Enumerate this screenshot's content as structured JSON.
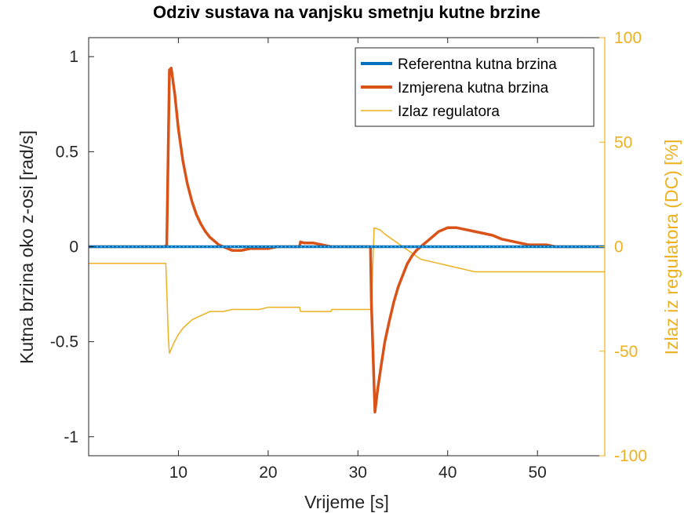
{
  "chart_data": {
    "type": "line",
    "title": "Odziv sustava na vanjsku smetnju kutne brzine",
    "xlabel": "Vrijeme [s]",
    "ylabel": "Kutna brzina oko z-osi [rad/s]",
    "ylabel_right": "Izlaz iz regulatora (DC) [%]",
    "xlim": [
      0,
      57.5
    ],
    "ylim": [
      -1.1,
      1.1
    ],
    "ylim_right": [
      -100,
      100
    ],
    "xticks": [
      10,
      20,
      30,
      40,
      50
    ],
    "xtick_labels": [
      "10",
      "20",
      "30",
      "40",
      "50"
    ],
    "yticks": [
      -1,
      -0.5,
      0,
      0.5,
      1
    ],
    "ytick_labels": [
      "-1",
      "-0.5",
      "0",
      "0.5",
      "1"
    ],
    "yticks_right": [
      -100,
      -50,
      0,
      50,
      100
    ],
    "ytick_labels_right": [
      "-100",
      "-50",
      "0",
      "50",
      "100"
    ],
    "grid": false,
    "legend_position": "top-right",
    "series": [
      {
        "name": "Referentna kutna brzina",
        "axis": "left",
        "color": "#0072BD",
        "x": [
          0,
          57.5
        ],
        "y": [
          0,
          0
        ]
      },
      {
        "name": "Izmjerena kutna brzina",
        "axis": "left",
        "color": "#D95319",
        "x": [
          0,
          8.5,
          8.7,
          8.9,
          9.0,
          9.2,
          9.6,
          10.0,
          10.5,
          11.0,
          11.5,
          12.0,
          12.5,
          13.0,
          13.5,
          14.0,
          14.5,
          15.0,
          16.0,
          17.0,
          18.0,
          19.0,
          20.0,
          21.0,
          22.0,
          23.0,
          23.5,
          23.6,
          24.0,
          25.0,
          26.0,
          27.0,
          28.0,
          29.0,
          30.0,
          31.0,
          31.4,
          31.5,
          31.9,
          32.2,
          32.6,
          33.0,
          33.5,
          34.0,
          34.5,
          35.0,
          35.5,
          36.0,
          36.5,
          37.0,
          37.5,
          38.0,
          38.5,
          39.0,
          39.5,
          40.0,
          40.5,
          41.0,
          42.0,
          43.0,
          44.0,
          45.0,
          46.0,
          47.0,
          48.0,
          49.0,
          50.0,
          51.0,
          52.0,
          53.0,
          54.0,
          55.0,
          56.0,
          57.5
        ],
        "y": [
          0,
          0,
          0.01,
          0.6,
          0.93,
          0.94,
          0.8,
          0.62,
          0.45,
          0.33,
          0.24,
          0.17,
          0.12,
          0.08,
          0.05,
          0.03,
          0.01,
          0.0,
          -0.02,
          -0.02,
          -0.01,
          -0.01,
          -0.01,
          0.0,
          0.0,
          0.0,
          0.0,
          0.025,
          0.02,
          0.02,
          0.01,
          0.0,
          0.0,
          0.0,
          0.0,
          0.0,
          0.0,
          -0.3,
          -0.87,
          -0.75,
          -0.62,
          -0.5,
          -0.39,
          -0.29,
          -0.21,
          -0.15,
          -0.09,
          -0.05,
          -0.02,
          0.0,
          0.02,
          0.04,
          0.06,
          0.08,
          0.09,
          0.1,
          0.1,
          0.1,
          0.09,
          0.08,
          0.07,
          0.06,
          0.04,
          0.03,
          0.02,
          0.01,
          0.01,
          0.01,
          0.0,
          0.0,
          0.0,
          0.0,
          0.0,
          0.0
        ]
      },
      {
        "name": "Izlaz regulatora",
        "axis": "right",
        "color": "#EDB120",
        "x": [
          0,
          8.5,
          8.6,
          8.9,
          9.0,
          9.5,
          10.0,
          10.5,
          11.0,
          11.5,
          12.0,
          12.5,
          13.0,
          13.5,
          14.0,
          15.0,
          16.0,
          17.0,
          18.0,
          19.0,
          20.0,
          21.0,
          21.1,
          23.5,
          23.6,
          27.0,
          27.1,
          31.3,
          31.5,
          31.8,
          32.5,
          33.0,
          34.0,
          35.0,
          36.0,
          37.0,
          38.0,
          39.0,
          40.0,
          41.0,
          42.0,
          43.0,
          44.0,
          45.0,
          50.0,
          57.5
        ],
        "y": [
          -8,
          -8,
          -8,
          -45,
          -51,
          -46,
          -42,
          -39,
          -37,
          -35,
          -34,
          -33,
          -32,
          -31,
          -31,
          -31,
          -30,
          -30,
          -30,
          -30,
          -29,
          -29,
          -29,
          -29,
          -31,
          -31,
          -30,
          -30,
          -30,
          9,
          8,
          6,
          3,
          0,
          -3,
          -6,
          -7,
          -8,
          -9,
          -10,
          -11,
          -12,
          -12,
          -12,
          -12,
          -12
        ]
      }
    ]
  }
}
